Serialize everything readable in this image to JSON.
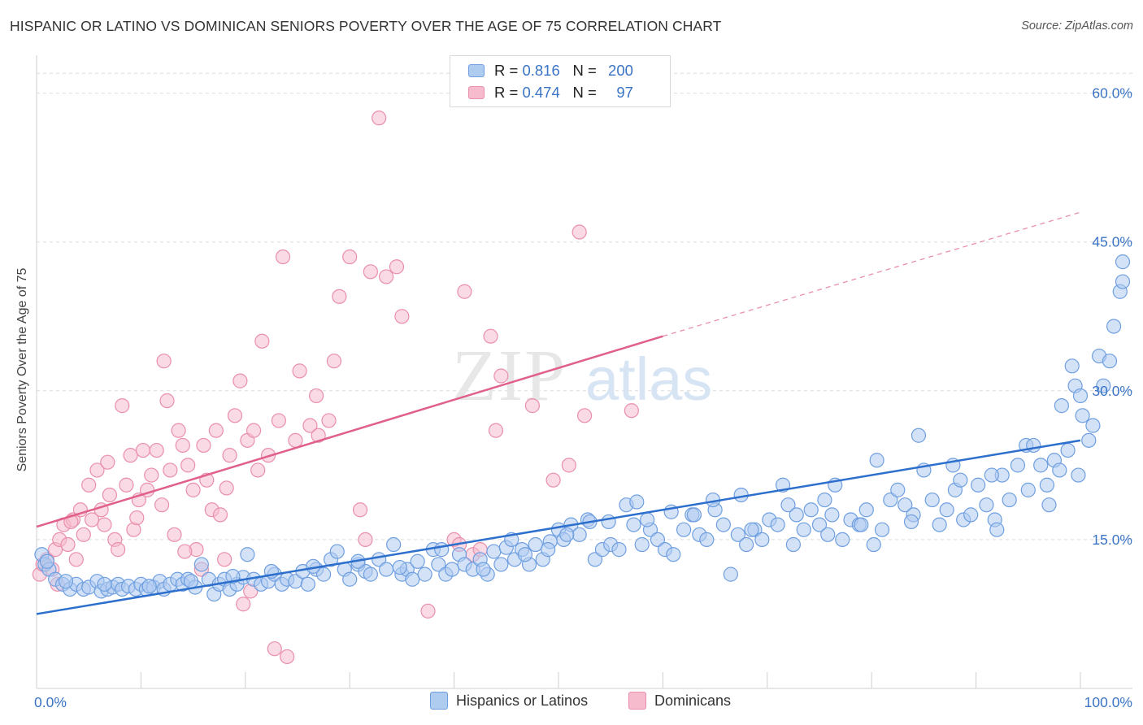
{
  "title": "HISPANIC OR LATINO VS DOMINICAN SENIORS POVERTY OVER THE AGE OF 75 CORRELATION CHART",
  "source": "Source: ZipAtlas.com",
  "watermark": {
    "zip": "ZIP",
    "atlas": "atlas"
  },
  "legend_top": {
    "rows": [
      {
        "r_label": "R =",
        "r_value": "0.816",
        "n_label": "N =",
        "n_value": "200"
      },
      {
        "r_label": "R =",
        "r_value": "0.474",
        "n_label": "N =",
        "n_value": "97"
      }
    ]
  },
  "bottom_legend": {
    "hispanic": "Hispanics or Latinos",
    "dominican": "Dominicans"
  },
  "colors": {
    "blue_fill": "#aecbf0",
    "blue_stroke": "#6f9fe0",
    "blue_line": "#2d6fcc",
    "pink_fill": "#f6bccd",
    "pink_stroke": "#ea8fab",
    "pink_line": "#e0608a",
    "tick_label": "#3a74c6",
    "grid": "#dcdcdc"
  },
  "chart_data": {
    "type": "scatter",
    "title": "HISPANIC OR LATINO VS DOMINICAN SENIORS POVERTY OVER THE AGE OF 75 CORRELATION CHART",
    "xlabel": "",
    "ylabel": "Seniors Poverty Over the Age of 75",
    "xlim": [
      0,
      100
    ],
    "ylim": [
      0,
      63
    ],
    "x_tick_labels": [
      "0.0%",
      "100.0%"
    ],
    "y_ticks": [
      15,
      30,
      45,
      60
    ],
    "y_tick_labels": [
      "15.0%",
      "30.0%",
      "45.0%",
      "60.0%"
    ],
    "grid": true,
    "legend": "top-center",
    "series": [
      {
        "name": "Hispanics or Latinos",
        "r": 0.816,
        "n": 200,
        "trend": {
          "x": [
            0,
            100
          ],
          "y": [
            7.5,
            25.0
          ],
          "dashed_to": null
        },
        "points": [
          [
            0.5,
            13.5
          ],
          [
            0.8,
            12.5
          ],
          [
            1.2,
            12.0
          ],
          [
            1.8,
            11.0
          ],
          [
            2.5,
            10.5
          ],
          [
            3.2,
            10.0
          ],
          [
            3.8,
            10.5
          ],
          [
            4.5,
            10.0
          ],
          [
            5.0,
            10.2
          ],
          [
            5.8,
            10.8
          ],
          [
            6.2,
            9.8
          ],
          [
            6.8,
            10.0
          ],
          [
            7.3,
            10.2
          ],
          [
            7.8,
            10.5
          ],
          [
            8.2,
            10.0
          ],
          [
            8.8,
            10.3
          ],
          [
            9.5,
            10.0
          ],
          [
            10.0,
            10.5
          ],
          [
            10.5,
            10.0
          ],
          [
            11.2,
            10.2
          ],
          [
            11.8,
            10.8
          ],
          [
            12.2,
            10.0
          ],
          [
            12.8,
            10.5
          ],
          [
            13.5,
            11.0
          ],
          [
            14.0,
            10.5
          ],
          [
            14.5,
            11.0
          ],
          [
            15.2,
            10.2
          ],
          [
            15.8,
            12.5
          ],
          [
            16.5,
            11.0
          ],
          [
            17.0,
            9.5
          ],
          [
            17.5,
            10.5
          ],
          [
            18.0,
            11.0
          ],
          [
            18.5,
            10.0
          ],
          [
            19.2,
            10.5
          ],
          [
            19.8,
            11.2
          ],
          [
            20.2,
            13.5
          ],
          [
            20.8,
            11.0
          ],
          [
            21.5,
            10.5
          ],
          [
            22.2,
            10.8
          ],
          [
            22.8,
            11.5
          ],
          [
            23.5,
            10.5
          ],
          [
            24.0,
            11.0
          ],
          [
            24.8,
            10.8
          ],
          [
            25.5,
            11.8
          ],
          [
            26.0,
            10.5
          ],
          [
            26.8,
            12.0
          ],
          [
            27.5,
            11.5
          ],
          [
            28.2,
            13.0
          ],
          [
            28.8,
            13.8
          ],
          [
            29.5,
            12.0
          ],
          [
            30.0,
            11.0
          ],
          [
            30.8,
            12.5
          ],
          [
            31.5,
            11.8
          ],
          [
            32.0,
            11.5
          ],
          [
            32.8,
            13.0
          ],
          [
            33.5,
            12.0
          ],
          [
            34.2,
            14.5
          ],
          [
            35.0,
            11.5
          ],
          [
            35.5,
            12.0
          ],
          [
            36.0,
            11.0
          ],
          [
            36.5,
            12.8
          ],
          [
            37.2,
            11.5
          ],
          [
            38.0,
            14.0
          ],
          [
            38.5,
            12.5
          ],
          [
            39.2,
            11.5
          ],
          [
            39.8,
            12.0
          ],
          [
            40.5,
            13.5
          ],
          [
            41.0,
            12.5
          ],
          [
            41.8,
            12.0
          ],
          [
            42.5,
            13.0
          ],
          [
            43.2,
            11.5
          ],
          [
            43.8,
            13.8
          ],
          [
            44.5,
            12.5
          ],
          [
            45.0,
            14.2
          ],
          [
            45.8,
            13.0
          ],
          [
            46.5,
            14.0
          ],
          [
            47.2,
            12.5
          ],
          [
            47.8,
            14.5
          ],
          [
            48.5,
            13.0
          ],
          [
            49.2,
            14.8
          ],
          [
            50.0,
            16.0
          ],
          [
            50.5,
            15.0
          ],
          [
            51.2,
            16.5
          ],
          [
            52.0,
            15.5
          ],
          [
            52.8,
            17.0
          ],
          [
            53.5,
            13.0
          ],
          [
            54.2,
            14.0
          ],
          [
            55.0,
            14.5
          ],
          [
            55.8,
            14.0
          ],
          [
            56.5,
            18.5
          ],
          [
            57.2,
            16.5
          ],
          [
            58.0,
            14.5
          ],
          [
            58.8,
            16.0
          ],
          [
            59.5,
            15.0
          ],
          [
            60.2,
            14.0
          ],
          [
            61.0,
            13.5
          ],
          [
            62.0,
            16.0
          ],
          [
            62.8,
            17.5
          ],
          [
            63.5,
            15.5
          ],
          [
            64.2,
            15.0
          ],
          [
            65.0,
            18.0
          ],
          [
            65.8,
            16.5
          ],
          [
            66.5,
            11.5
          ],
          [
            67.2,
            15.5
          ],
          [
            68.0,
            14.5
          ],
          [
            68.8,
            16.0
          ],
          [
            69.5,
            15.0
          ],
          [
            70.2,
            17.0
          ],
          [
            71.0,
            16.5
          ],
          [
            72.0,
            18.5
          ],
          [
            72.8,
            17.5
          ],
          [
            73.5,
            16.0
          ],
          [
            74.2,
            18.0
          ],
          [
            75.0,
            16.5
          ],
          [
            75.8,
            15.5
          ],
          [
            76.5,
            20.5
          ],
          [
            77.2,
            15.0
          ],
          [
            78.0,
            17.0
          ],
          [
            78.8,
            16.5
          ],
          [
            79.5,
            18.0
          ],
          [
            80.2,
            14.5
          ],
          [
            81.0,
            16.0
          ],
          [
            81.8,
            19.0
          ],
          [
            82.5,
            20.0
          ],
          [
            83.2,
            18.5
          ],
          [
            84.0,
            17.5
          ],
          [
            85.0,
            22.0
          ],
          [
            85.8,
            19.0
          ],
          [
            86.5,
            16.5
          ],
          [
            87.2,
            18.0
          ],
          [
            88.0,
            20.0
          ],
          [
            88.8,
            17.0
          ],
          [
            89.5,
            17.5
          ],
          [
            90.2,
            20.5
          ],
          [
            91.0,
            18.5
          ],
          [
            91.8,
            17.0
          ],
          [
            92.5,
            21.5
          ],
          [
            93.2,
            19.0
          ],
          [
            94.0,
            22.5
          ],
          [
            94.8,
            24.5
          ],
          [
            95.5,
            24.5
          ],
          [
            96.2,
            22.5
          ],
          [
            96.8,
            20.5
          ],
          [
            97.5,
            23.0
          ],
          [
            98.2,
            28.5
          ],
          [
            98.8,
            24.0
          ],
          [
            99.2,
            32.5
          ],
          [
            99.5,
            30.5
          ],
          [
            100.0,
            29.5
          ],
          [
            100.2,
            27.5
          ],
          [
            100.8,
            25.0
          ],
          [
            101.2,
            26.5
          ],
          [
            101.8,
            33.5
          ],
          [
            102.2,
            30.5
          ],
          [
            102.8,
            33.0
          ],
          [
            103.2,
            36.5
          ],
          [
            103.8,
            40.0
          ],
          [
            104.2,
            41.0
          ],
          [
            104.8,
            43.0
          ],
          [
            98.0,
            22.0
          ],
          [
            91.5,
            21.5
          ],
          [
            87.8,
            22.5
          ],
          [
            84.5,
            25.5
          ],
          [
            80.5,
            23.0
          ],
          [
            75.5,
            19.0
          ],
          [
            71.5,
            20.5
          ],
          [
            67.5,
            19.5
          ],
          [
            63.0,
            17.5
          ],
          [
            58.5,
            17.0
          ],
          [
            54.8,
            16.8
          ],
          [
            50.8,
            15.5
          ],
          [
            46.8,
            13.5
          ],
          [
            42.8,
            12.0
          ],
          [
            38.8,
            14.0
          ],
          [
            34.8,
            12.2
          ],
          [
            30.8,
            12.8
          ],
          [
            26.5,
            12.3
          ],
          [
            22.5,
            11.8
          ],
          [
            18.8,
            11.3
          ],
          [
            14.8,
            10.8
          ],
          [
            10.8,
            10.3
          ],
          [
            6.5,
            10.5
          ],
          [
            2.8,
            10.8
          ],
          [
            1.0,
            12.8
          ],
          [
            60.8,
            17.8
          ],
          [
            64.8,
            19.0
          ],
          [
            68.5,
            16.0
          ],
          [
            72.5,
            14.5
          ],
          [
            76.2,
            17.5
          ],
          [
            79.0,
            16.5
          ],
          [
            83.8,
            16.8
          ],
          [
            88.5,
            21.0
          ],
          [
            92.0,
            16.0
          ],
          [
            95.0,
            20.0
          ],
          [
            97.0,
            18.5
          ],
          [
            99.8,
            21.5
          ],
          [
            57.5,
            18.8
          ],
          [
            53.0,
            16.8
          ],
          [
            49.0,
            14.0
          ],
          [
            45.5,
            15.0
          ]
        ]
      },
      {
        "name": "Dominicans",
        "r": 0.474,
        "n": 97,
        "trend": {
          "x": [
            0,
            60
          ],
          "y": [
            16.3,
            35.5
          ],
          "dashed_to": [
            100,
            48.0
          ]
        },
        "points": [
          [
            0.3,
            11.5
          ],
          [
            0.6,
            12.5
          ],
          [
            1.0,
            13.0
          ],
          [
            1.5,
            12.0
          ],
          [
            1.8,
            14.0
          ],
          [
            2.2,
            15.0
          ],
          [
            2.6,
            16.5
          ],
          [
            3.0,
            14.5
          ],
          [
            3.5,
            17.0
          ],
          [
            3.8,
            13.0
          ],
          [
            4.2,
            18.0
          ],
          [
            4.5,
            15.5
          ],
          [
            5.0,
            20.5
          ],
          [
            5.3,
            17.0
          ],
          [
            5.8,
            22.0
          ],
          [
            6.2,
            18.0
          ],
          [
            6.5,
            16.5
          ],
          [
            7.0,
            19.5
          ],
          [
            7.5,
            15.0
          ],
          [
            7.8,
            14.0
          ],
          [
            8.2,
            28.5
          ],
          [
            8.6,
            20.5
          ],
          [
            9.0,
            23.5
          ],
          [
            9.3,
            16.0
          ],
          [
            9.8,
            19.0
          ],
          [
            10.2,
            24.0
          ],
          [
            10.6,
            20.0
          ],
          [
            11.0,
            21.5
          ],
          [
            11.5,
            24.0
          ],
          [
            12.0,
            18.5
          ],
          [
            12.5,
            29.0
          ],
          [
            12.8,
            22.0
          ],
          [
            13.2,
            15.5
          ],
          [
            13.6,
            26.0
          ],
          [
            14.0,
            24.5
          ],
          [
            14.5,
            22.5
          ],
          [
            15.0,
            20.0
          ],
          [
            15.3,
            14.0
          ],
          [
            15.8,
            12.0
          ],
          [
            16.3,
            21.0
          ],
          [
            16.8,
            18.0
          ],
          [
            17.2,
            26.0
          ],
          [
            17.6,
            17.5
          ],
          [
            18.0,
            13.0
          ],
          [
            18.5,
            23.5
          ],
          [
            19.0,
            27.5
          ],
          [
            19.5,
            31.0
          ],
          [
            19.8,
            8.5
          ],
          [
            20.2,
            25.0
          ],
          [
            20.8,
            26.0
          ],
          [
            21.2,
            22.0
          ],
          [
            21.6,
            35.0
          ],
          [
            22.2,
            23.5
          ],
          [
            22.8,
            4.0
          ],
          [
            23.2,
            27.0
          ],
          [
            23.6,
            43.5
          ],
          [
            24.0,
            3.2
          ],
          [
            24.8,
            25.0
          ],
          [
            25.2,
            32.0
          ],
          [
            26.2,
            26.5
          ],
          [
            27.0,
            25.5
          ],
          [
            28.0,
            27.0
          ],
          [
            28.5,
            33.0
          ],
          [
            29.0,
            39.5
          ],
          [
            30.0,
            43.5
          ],
          [
            31.0,
            18.0
          ],
          [
            31.5,
            15.0
          ],
          [
            32.0,
            42.0
          ],
          [
            32.8,
            57.5
          ],
          [
            33.5,
            41.5
          ],
          [
            34.5,
            42.5
          ],
          [
            35.0,
            37.5
          ],
          [
            37.5,
            7.8
          ],
          [
            40.0,
            15.0
          ],
          [
            40.5,
            14.5
          ],
          [
            41.0,
            40.0
          ],
          [
            41.8,
            13.5
          ],
          [
            42.5,
            14.0
          ],
          [
            43.5,
            35.5
          ],
          [
            44.0,
            26.0
          ],
          [
            44.5,
            31.5
          ],
          [
            47.5,
            28.5
          ],
          [
            49.5,
            21.0
          ],
          [
            51.0,
            22.5
          ],
          [
            52.0,
            46.0
          ],
          [
            52.5,
            27.5
          ],
          [
            57.0,
            28.0
          ],
          [
            12.2,
            33.0
          ],
          [
            2.0,
            10.5
          ],
          [
            3.3,
            16.8
          ],
          [
            6.8,
            22.8
          ],
          [
            9.6,
            17.2
          ],
          [
            14.2,
            13.8
          ],
          [
            16.0,
            24.5
          ],
          [
            18.2,
            20.2
          ],
          [
            20.5,
            9.8
          ],
          [
            26.8,
            29.5
          ]
        ]
      }
    ]
  }
}
